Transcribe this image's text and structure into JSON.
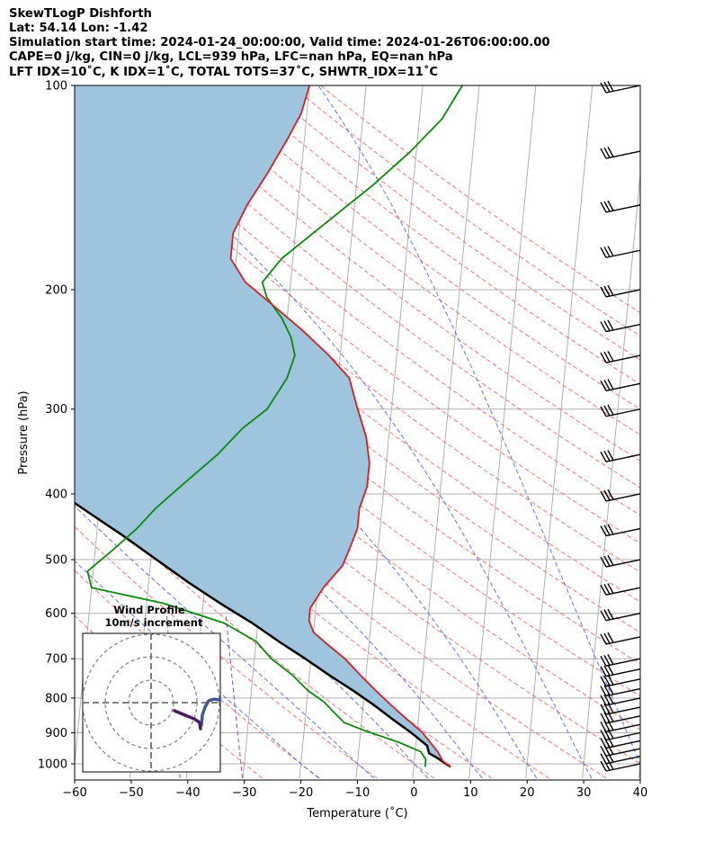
{
  "header": {
    "line1": "SkewTLogP Dishforth",
    "line2": "Lat: 54.14   Lon: -1.42",
    "line3": "Simulation start time: 2024-01-24_00:00:00, Valid time: 2024-01-26T06:00:00.00",
    "line4": "CAPE=0 j/kg, CIN=0 j/kg, LCL=939 hPa, LFC=nan hPa, EQ=nan hPa",
    "line5": "LFT IDX=10˚C, K IDX=1˚C, TOTAL TOTS=37˚C, SHWTR_IDX=11˚C"
  },
  "chart_data": {
    "type": "skewt-logp",
    "xlabel": "Temperature (˚C)",
    "ylabel": "Pressure (hPa)",
    "xlim": [
      -60,
      40
    ],
    "ylim_hpa": [
      1050,
      100
    ],
    "x_ticks": [
      "−60",
      "−50",
      "−40",
      "−30",
      "−20",
      "−10",
      "0",
      "10",
      "20",
      "30",
      "40"
    ],
    "y_ticks": [
      "100",
      "200",
      "300",
      "400",
      "500",
      "600",
      "700",
      "800",
      "900",
      "1000"
    ],
    "colors": {
      "temperature": "#e01b1b",
      "dewpoint": "#0a8a0a",
      "parcel": "#000000",
      "cape_fill": "#9ec4de",
      "dry_adiabat": "#f06a6a",
      "moist_adiabat": "#5566ee",
      "mixing_ratio": "#9933bb",
      "isotherm": "#b0b0b0"
    },
    "series": [
      {
        "key": "temperature",
        "points": [
          [
            6.5,
            1010
          ],
          [
            5,
            990
          ],
          [
            4,
            960
          ],
          [
            3,
            940
          ],
          [
            1,
            900
          ],
          [
            -2,
            860
          ],
          [
            -5,
            820
          ],
          [
            -8,
            780
          ],
          [
            -11,
            740
          ],
          [
            -14,
            700
          ],
          [
            -17,
            670
          ],
          [
            -20,
            640
          ],
          [
            -21,
            615
          ],
          [
            -21,
            590
          ],
          [
            -19,
            550
          ],
          [
            -16,
            510
          ],
          [
            -15,
            480
          ],
          [
            -14,
            450
          ],
          [
            -14,
            420
          ],
          [
            -13,
            390
          ],
          [
            -13,
            360
          ],
          [
            -14,
            330
          ],
          [
            -16,
            300
          ],
          [
            -18,
            270
          ],
          [
            -22,
            250
          ],
          [
            -27,
            230
          ],
          [
            -33,
            210
          ],
          [
            -38,
            195
          ],
          [
            -41,
            180
          ],
          [
            -41,
            165
          ],
          [
            -39,
            150
          ],
          [
            -36,
            135
          ],
          [
            -33,
            120
          ],
          [
            -31,
            110
          ],
          [
            -30,
            100
          ]
        ]
      },
      {
        "key": "dewpoint",
        "points": [
          [
            2,
            1010
          ],
          [
            2,
            985
          ],
          [
            1,
            960
          ],
          [
            -3,
            930
          ],
          [
            -9,
            895
          ],
          [
            -13,
            870
          ],
          [
            -15,
            840
          ],
          [
            -17,
            810
          ],
          [
            -20,
            780
          ],
          [
            -23,
            740
          ],
          [
            -27,
            700
          ],
          [
            -30,
            660
          ],
          [
            -36,
            620
          ],
          [
            -47,
            580
          ],
          [
            -60,
            550
          ],
          [
            -61,
            520
          ],
          [
            -57,
            485
          ],
          [
            -53,
            450
          ],
          [
            -50,
            420
          ],
          [
            -46,
            390
          ],
          [
            -40,
            350
          ],
          [
            -36,
            320
          ],
          [
            -32,
            300
          ],
          [
            -29,
            270
          ],
          [
            -28,
            250
          ],
          [
            -29,
            235
          ],
          [
            -31,
            220
          ],
          [
            -34,
            205
          ],
          [
            -35,
            195
          ],
          [
            -32,
            180
          ],
          [
            -25,
            160
          ],
          [
            -17,
            140
          ],
          [
            -11,
            125
          ],
          [
            -6,
            112
          ],
          [
            -3,
            100
          ]
        ]
      },
      {
        "key": "parcel",
        "points": [
          [
            6.5,
            1010
          ],
          [
            4,
            980
          ],
          [
            2.5,
            965
          ],
          [
            2,
            940
          ],
          [
            -1,
            900
          ],
          [
            -4.5,
            860
          ],
          [
            -8,
            820
          ],
          [
            -12,
            780
          ],
          [
            -16.5,
            740
          ],
          [
            -21,
            700
          ],
          [
            -26,
            660
          ],
          [
            -31,
            620
          ],
          [
            -37,
            580
          ],
          [
            -43,
            540
          ],
          [
            -49,
            500
          ],
          [
            -55.5,
            460
          ],
          [
            -63,
            420
          ],
          [
            -71,
            380
          ],
          [
            -79,
            345
          ],
          [
            -88,
            310
          ],
          [
            -96,
            280
          ],
          [
            -105,
            250
          ],
          [
            -115,
            220
          ],
          [
            -125,
            195
          ],
          [
            -136,
            170
          ],
          [
            -148,
            145
          ],
          [
            -160,
            125
          ],
          [
            -170,
            110
          ],
          [
            -178,
            100
          ]
        ]
      }
    ],
    "wind_barbs": {
      "pressures_hpa": [
        1000,
        975,
        950,
        925,
        900,
        875,
        850,
        825,
        800,
        775,
        750,
        725,
        700,
        650,
        600,
        550,
        500,
        450,
        400,
        350,
        300,
        275,
        250,
        225,
        200,
        175,
        150,
        125,
        100
      ],
      "barb_color": "#000000"
    },
    "inset": {
      "title": "Wind Profile",
      "subtitle": "10m/s increment",
      "ring_color": "#808080",
      "hodograph_colors": [
        "#3d5a94",
        "#4a1a5c"
      ]
    }
  }
}
